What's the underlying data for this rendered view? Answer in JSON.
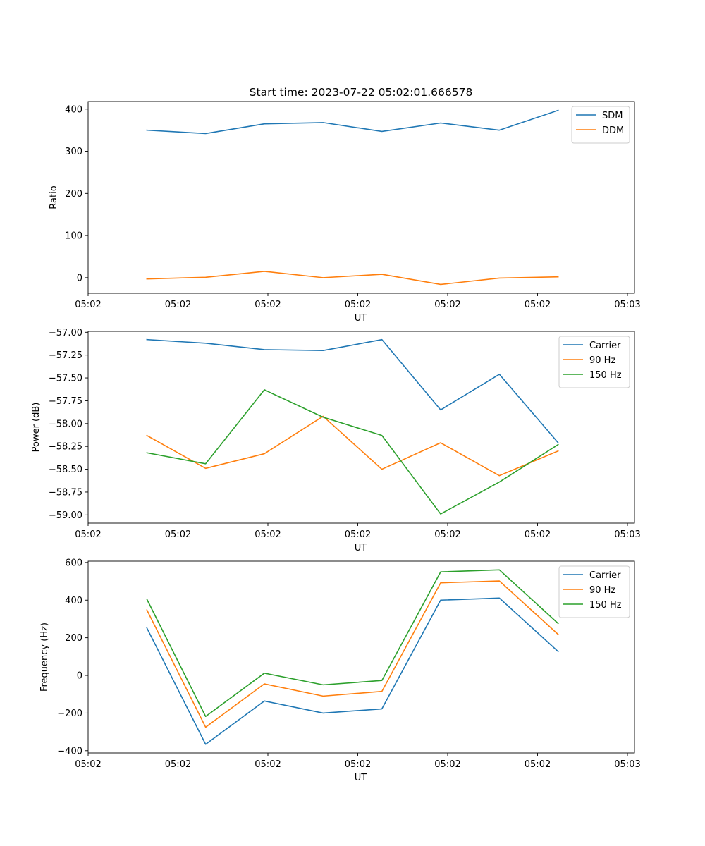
{
  "title": "Start time: 2023-07-22 05:02:01.666578",
  "colors": {
    "blue": "#1f77b4",
    "orange": "#ff7f0e",
    "green": "#2ca02c"
  },
  "chart_data": [
    {
      "type": "line",
      "title": "Start time: 2023-07-22 05:02:01.666578",
      "xlabel": "UT",
      "ylabel": "Ratio",
      "x": [
        1,
        2,
        3,
        4,
        5,
        6,
        7,
        8
      ],
      "xlim": [
        0,
        9.3
      ],
      "xticks": [
        0,
        1.53,
        3.06,
        4.59,
        6.12,
        7.65,
        9.18
      ],
      "xtick_labels": [
        "05:02",
        "05:02",
        "05:02",
        "05:02",
        "05:02",
        "05:02",
        "05:03"
      ],
      "ylim": [
        -37,
        418
      ],
      "yticks": [
        0,
        100,
        200,
        300,
        400
      ],
      "ytick_labels": [
        "0",
        "100",
        "200",
        "300",
        "400"
      ],
      "legend": "top-right",
      "series": [
        {
          "name": "SDM",
          "color": "#1f77b4",
          "values": [
            350,
            342,
            365,
            368,
            347,
            367,
            350,
            397
          ]
        },
        {
          "name": "DDM",
          "color": "#ff7f0e",
          "values": [
            -3,
            1,
            15,
            0,
            8,
            -16,
            -1,
            2
          ]
        }
      ]
    },
    {
      "type": "line",
      "xlabel": "UT",
      "ylabel": "Power (dB)",
      "x": [
        1,
        2,
        3,
        4,
        5,
        6,
        7,
        8
      ],
      "xlim": [
        0,
        9.3
      ],
      "xticks": [
        0,
        1.53,
        3.06,
        4.59,
        6.12,
        7.65,
        9.18
      ],
      "xtick_labels": [
        "05:02",
        "05:02",
        "05:02",
        "05:02",
        "05:02",
        "05:02",
        "05:03"
      ],
      "ylim": [
        -59.09,
        -56.99
      ],
      "yticks": [
        -57.0,
        -57.25,
        -57.5,
        -57.75,
        -58.0,
        -58.25,
        -58.5,
        -58.75,
        -59.0
      ],
      "ytick_labels": [
        "−57.00",
        "−57.25",
        "−57.50",
        "−57.75",
        "−58.00",
        "−58.25",
        "−58.50",
        "−58.75",
        "−59.00"
      ],
      "legend": "top-right",
      "series": [
        {
          "name": "Carrier",
          "color": "#1f77b4",
          "values": [
            -57.08,
            -57.12,
            -57.19,
            -57.2,
            -57.08,
            -57.85,
            -57.46,
            -58.21
          ]
        },
        {
          "name": "90 Hz",
          "color": "#ff7f0e",
          "values": [
            -58.13,
            -58.49,
            -58.33,
            -57.92,
            -58.5,
            -58.21,
            -58.57,
            -58.3
          ]
        },
        {
          "name": "150 Hz",
          "color": "#2ca02c",
          "values": [
            -58.32,
            -58.44,
            -57.63,
            -57.93,
            -58.13,
            -58.99,
            -58.64,
            -58.23
          ]
        }
      ]
    },
    {
      "type": "line",
      "xlabel": "UT",
      "ylabel": "Frequency (Hz)",
      "x": [
        1,
        2,
        3,
        4,
        5,
        6,
        7,
        8
      ],
      "xlim": [
        0,
        9.3
      ],
      "xticks": [
        0,
        1.53,
        3.06,
        4.59,
        6.12,
        7.65,
        9.18
      ],
      "xtick_labels": [
        "05:02",
        "05:02",
        "05:02",
        "05:02",
        "05:02",
        "05:02",
        "05:03"
      ],
      "ylim": [
        -412,
        607
      ],
      "yticks": [
        600,
        400,
        200,
        0,
        -200,
        -400
      ],
      "ytick_labels": [
        "600",
        "400",
        "200",
        "0",
        "−200",
        "−400"
      ],
      "legend": "top-right",
      "series": [
        {
          "name": "Carrier",
          "color": "#1f77b4",
          "values": [
            252,
            -366,
            -136,
            -200,
            -178,
            400,
            411,
            127
          ]
        },
        {
          "name": "90 Hz",
          "color": "#ff7f0e",
          "values": [
            348,
            -275,
            -45,
            -110,
            -85,
            492,
            502,
            218
          ]
        },
        {
          "name": "150 Hz",
          "color": "#2ca02c",
          "values": [
            405,
            -218,
            12,
            -50,
            -27,
            550,
            561,
            276
          ]
        }
      ]
    }
  ]
}
